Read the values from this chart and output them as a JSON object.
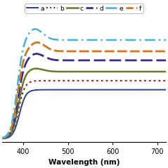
{
  "title": "",
  "xlabel": "Wavelength (nm)",
  "ylabel": "",
  "xlim": [
    352,
    720
  ],
  "ylim": [
    -0.02,
    1.05
  ],
  "background_color": "#ffffff",
  "x_ticks": [
    400,
    500,
    600,
    700
  ],
  "colors": {
    "a": "#2a3e8c",
    "b": "#8b1a1a",
    "c": "#6b7a2a",
    "d": "#3a2d8a",
    "e": "#4ab0cc",
    "f": "#c87828"
  },
  "lw": {
    "a": 1.4,
    "b": 1.4,
    "c": 1.8,
    "d": 2.0,
    "e": 1.8,
    "f": 2.0
  },
  "plateaus": {
    "a": 0.44,
    "b": 0.52,
    "c": 0.6,
    "d": 0.7,
    "f": 0.78,
    "e": 0.88
  },
  "rise_x0": {
    "a": 391,
    "b": 389,
    "c": 389,
    "d": 388,
    "f": 387,
    "e": 386
  },
  "peak_amp": {
    "a": 0.0,
    "b": 0.0,
    "c": 0.03,
    "d": 0.06,
    "f": 0.08,
    "e": 0.1
  },
  "peak_x": {
    "a": 420,
    "b": 420,
    "c": 425,
    "d": 428,
    "f": 430,
    "e": 425
  }
}
